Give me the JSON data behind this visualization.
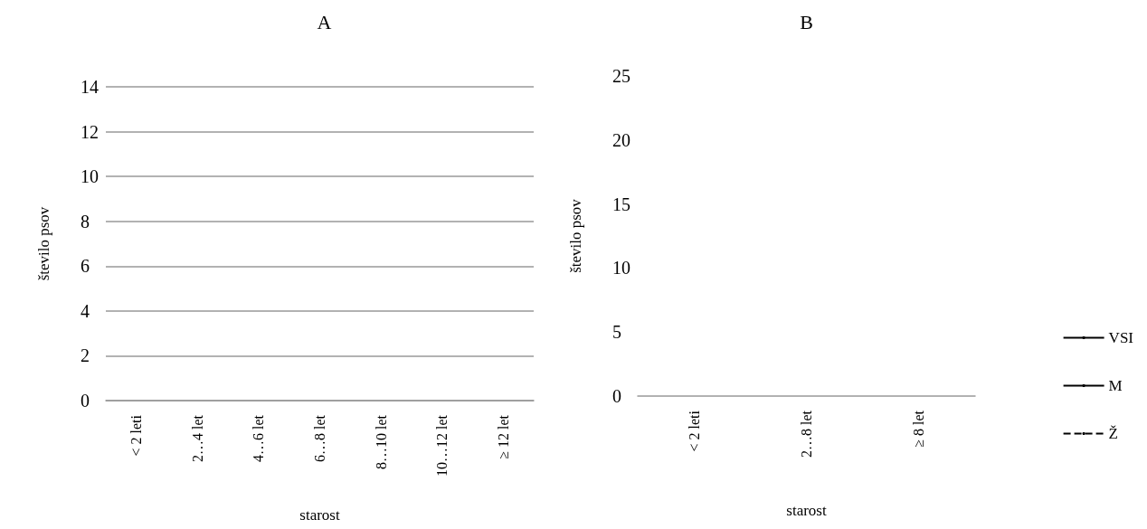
{
  "chart_data": [
    {
      "type": "line",
      "title": "A",
      "xlabel": "starost",
      "ylabel": "število psov",
      "categories": [
        "< 2 leti",
        "2…4 let",
        "4…6 let",
        "6…8 let",
        "8…10 let",
        "10…12 let",
        "≥ 12 let"
      ],
      "ylim": [
        0,
        14
      ],
      "yticks": [
        0,
        2,
        4,
        6,
        8,
        10,
        12,
        14
      ],
      "grid": "y",
      "values": [
        null,
        null,
        null,
        null,
        null,
        null,
        null
      ]
    },
    {
      "type": "line",
      "title": "B",
      "xlabel": "starost",
      "ylabel": "število psov",
      "categories": [
        "< 2 leti",
        "2…8 let",
        "≥ 8 let"
      ],
      "ylim": [
        0,
        25
      ],
      "yticks": [
        0,
        5,
        10,
        15,
        20,
        25
      ],
      "grid": false,
      "legend": "right",
      "series": [
        {
          "name": "VSI",
          "color": "#000000",
          "line_style": "solid",
          "values": [
            null,
            null,
            null
          ]
        },
        {
          "name": "M",
          "color": "#000000",
          "line_style": "solid",
          "values": [
            null,
            null,
            null
          ]
        },
        {
          "name": "Ž",
          "color": "#000000",
          "line_style": "dashed",
          "values": [
            null,
            null,
            null
          ]
        }
      ]
    }
  ]
}
